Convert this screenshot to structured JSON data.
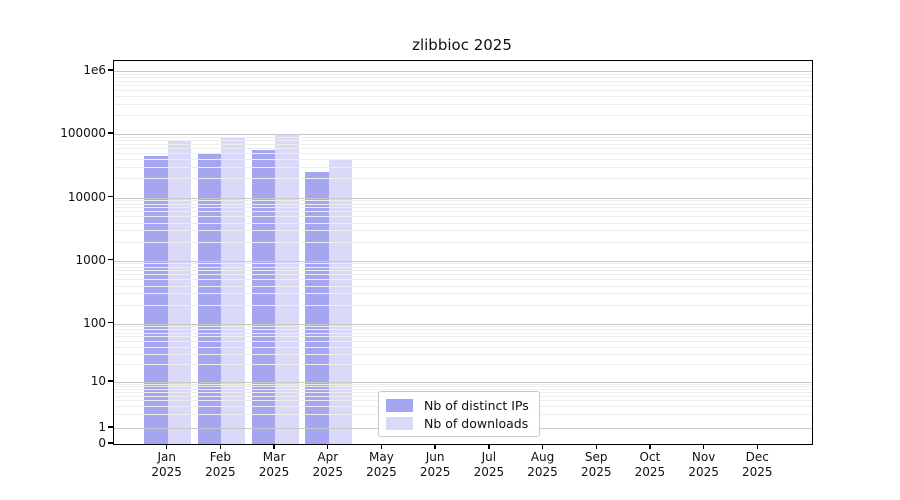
{
  "title": "zlibbioc 2025",
  "chart_data": {
    "type": "bar",
    "x_categories": [
      "Jan",
      "Feb",
      "Mar",
      "Apr",
      "May",
      "Jun",
      "Jul",
      "Aug",
      "Sep",
      "Oct",
      "Nov",
      "Dec"
    ],
    "x_year": "2025",
    "series": [
      {
        "name": "Nb of distinct IPs",
        "color": "#a6a6f0",
        "values": [
          45000,
          48000,
          57000,
          25500,
          0,
          0,
          0,
          0,
          0,
          0,
          0,
          0
        ]
      },
      {
        "name": "Nb of downloads",
        "color": "#dadaf8",
        "values": [
          78000,
          86000,
          101000,
          41000,
          0,
          0,
          0,
          0,
          0,
          0,
          0,
          0
        ]
      }
    ],
    "y_axis": {
      "scale": "symlog",
      "ticks": [
        {
          "label": "1e6",
          "value": 1000000
        },
        {
          "label": "100000",
          "value": 100000
        },
        {
          "label": "10000",
          "value": 10000
        },
        {
          "label": "1000",
          "value": 1000
        },
        {
          "label": "100",
          "value": 100
        },
        {
          "label": "10",
          "value": 10
        },
        {
          "label": "1",
          "value": 1
        },
        {
          "label": "0",
          "value": 0
        }
      ],
      "ylim": [
        0,
        1400000
      ]
    },
    "grid": {
      "major": true,
      "minor": true
    },
    "legend": {
      "position": "lower-center",
      "entries": [
        "Nb of distinct IPs",
        "Nb of downloads"
      ]
    }
  },
  "colors": {
    "bar_distinct_ips": "#a6a6f0",
    "bar_downloads": "#dadaf8",
    "grid_major": "#c8c8c8",
    "grid_minor": "#ededed",
    "spine": "#000000",
    "background": "#ffffff"
  }
}
